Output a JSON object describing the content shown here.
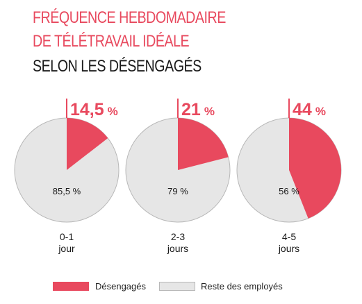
{
  "title": {
    "line1": "FRÉQUENCE HEBDOMADAIRE",
    "line2": "DE TÉLÉTRAVAIL IDÉALE",
    "line3": "SELON LES DÉSENGAGÉS"
  },
  "colors": {
    "accent": "#e8495e",
    "rest": "#e6e6e6",
    "rest_stroke": "#b8b8b8",
    "text": "#1a1a1a"
  },
  "legend": {
    "items": [
      {
        "label": "Désengagés",
        "color": "#e8495e"
      },
      {
        "label": "Reste des employés",
        "color": "#e6e6e6"
      }
    ]
  },
  "chart_data": {
    "type": "pie",
    "series": [
      {
        "name": "Désengagés",
        "color": "#e8495e"
      },
      {
        "name": "Reste des employés",
        "color": "#e6e6e6"
      }
    ],
    "pies": [
      {
        "category_line1": "0-1",
        "category_line2": "jour",
        "values": [
          14.5,
          85.5
        ],
        "highlight_label": "14,5",
        "highlight_unit": "%",
        "rest_label": "85,5 %"
      },
      {
        "category_line1": "2-3",
        "category_line2": "jours",
        "values": [
          21,
          79
        ],
        "highlight_label": "21",
        "highlight_unit": "%",
        "rest_label": "79 %"
      },
      {
        "category_line1": "4-5",
        "category_line2": "jours",
        "values": [
          44,
          56
        ],
        "highlight_label": "44",
        "highlight_unit": "%",
        "rest_label": "56 %"
      }
    ]
  }
}
